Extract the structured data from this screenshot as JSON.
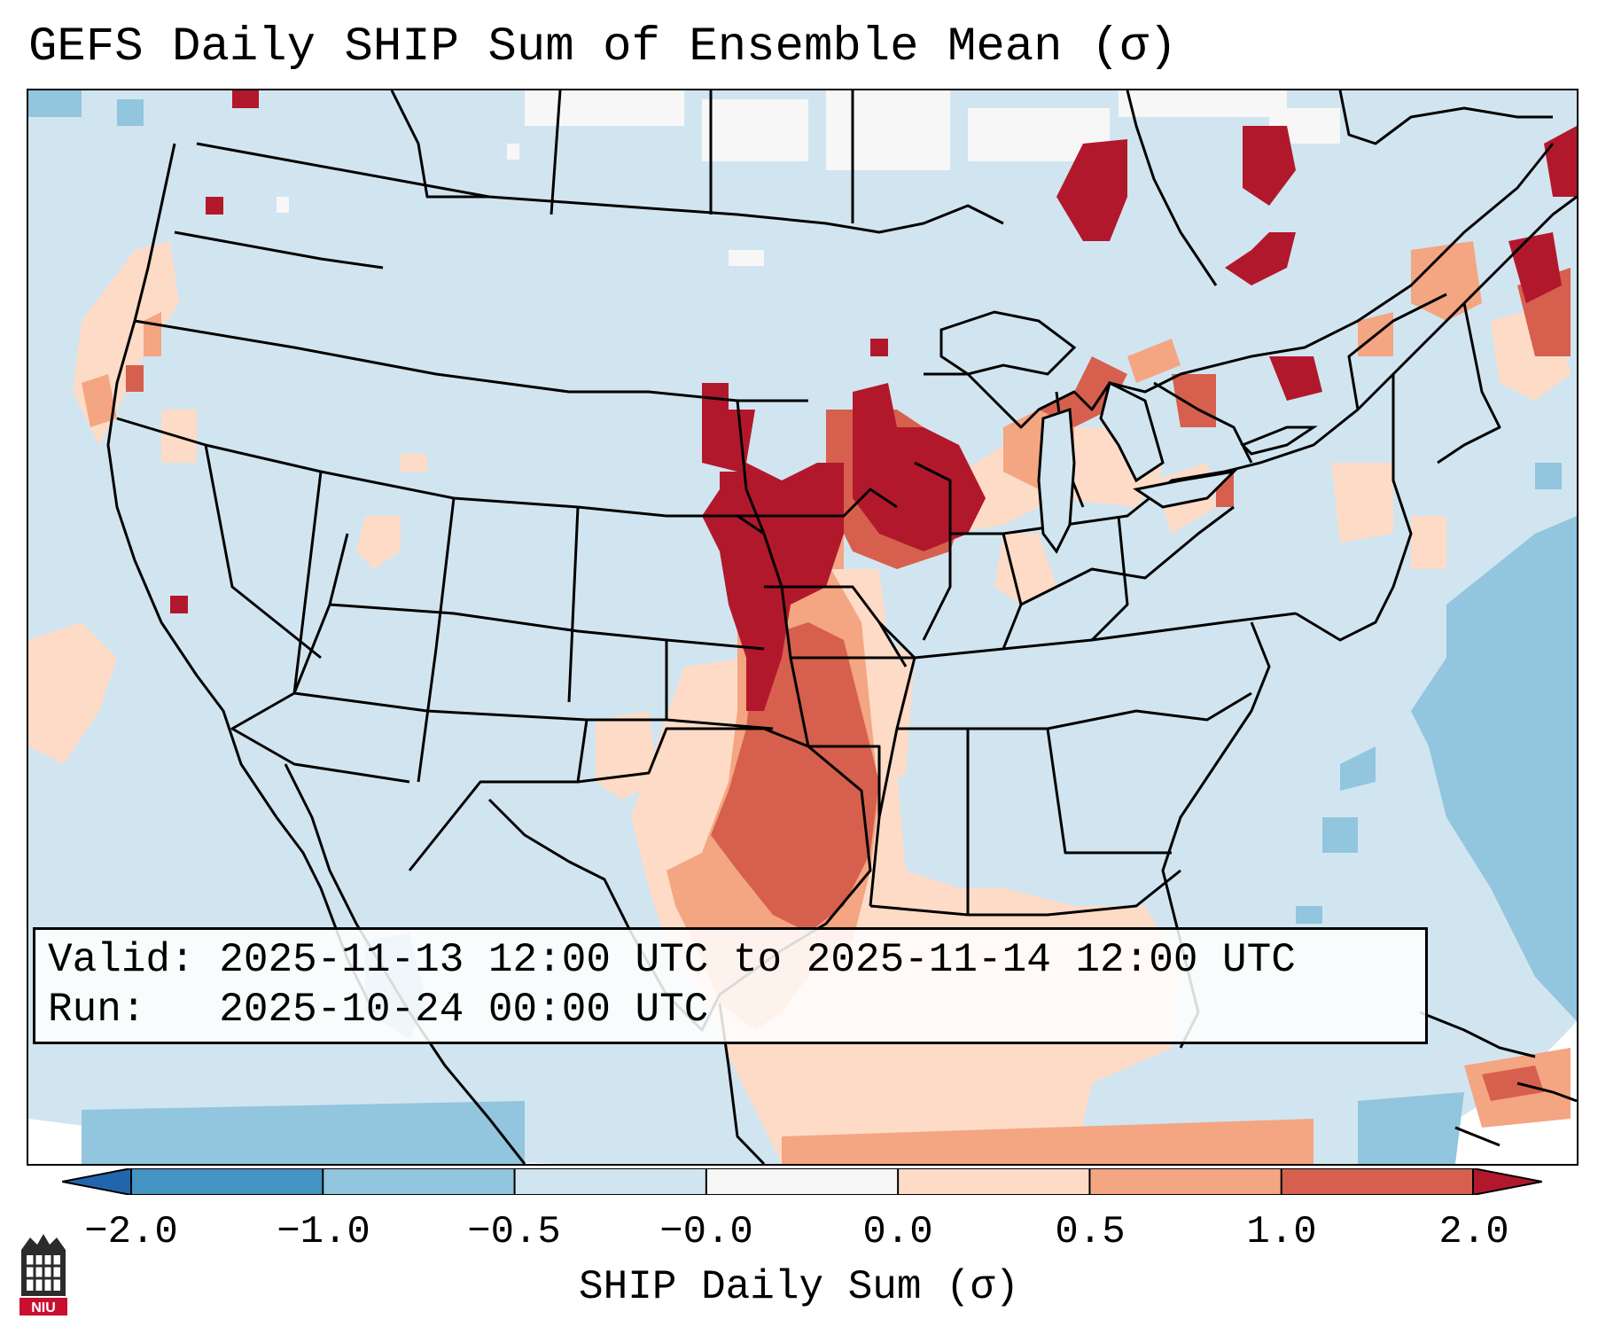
{
  "title": "GEFS Daily SHIP Sum of Ensemble Mean (σ)",
  "info": {
    "valid_label": "Valid:",
    "valid_value": "2025-11-13 12:00 UTC to 2025-11-14 12:00 UTC",
    "run_label": "Run:",
    "run_value": "2025-10-24 00:00 UTC"
  },
  "colorbar": {
    "label": "SHIP Daily Sum (σ)",
    "ticks": [
      "−2.0",
      "−1.0",
      "−0.5",
      "−0.0",
      "0.0",
      "0.5",
      "1.0",
      "2.0"
    ],
    "bin_colors": [
      "#4393c3",
      "#92c5de",
      "#d1e5f0",
      "#f7f7f7",
      "#fddbc7",
      "#f4a582",
      "#d6604d"
    ],
    "under_color": "#2166ac",
    "over_color": "#b2182b"
  },
  "map_colors": {
    "background": "#d1e5f0",
    "outside_domain": "#ffffff",
    "state_lines": "#000000"
  },
  "logo": {
    "text": "NIU",
    "colors": {
      "tower": "#2b2b2b",
      "band": "#c8102e"
    }
  }
}
